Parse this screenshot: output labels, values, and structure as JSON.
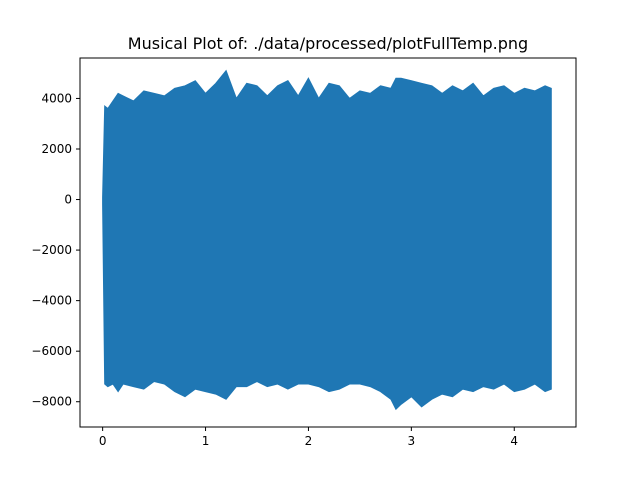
{
  "chart_data": {
    "type": "area",
    "title": "Musical Plot of: ./data/processed/plotFullTemp.png",
    "xlabel": "",
    "ylabel": "",
    "xlim": [
      -0.22,
      4.6
    ],
    "ylim": [
      -9000,
      5600
    ],
    "grid": false,
    "legend": "none",
    "xticks": [
      0,
      1,
      2,
      3,
      4
    ],
    "yticks": [
      -8000,
      -6000,
      -4000,
      -2000,
      0,
      2000,
      4000
    ],
    "xtick_labels": [
      "0",
      "1",
      "2",
      "3",
      "4"
    ],
    "ytick_labels": [
      "−8000",
      "−6000",
      "−4000",
      "−2000",
      "0",
      "2000",
      "4000"
    ],
    "series": [
      {
        "color": "#1f77b4",
        "x": [
          0,
          0.02,
          0.05,
          0.1,
          0.15,
          0.2,
          0.3,
          0.4,
          0.5,
          0.6,
          0.7,
          0.8,
          0.9,
          1.0,
          1.1,
          1.2,
          1.3,
          1.4,
          1.5,
          1.6,
          1.7,
          1.8,
          1.9,
          2.0,
          2.1,
          2.2,
          2.3,
          2.4,
          2.5,
          2.6,
          2.7,
          2.8,
          2.85,
          2.9,
          3.0,
          3.1,
          3.2,
          3.3,
          3.4,
          3.5,
          3.6,
          3.7,
          3.8,
          3.9,
          4.0,
          4.1,
          4.2,
          4.3,
          4.36
        ],
        "upper": [
          100,
          3700,
          3600,
          3900,
          4200,
          4100,
          3900,
          4300,
          4200,
          4100,
          4400,
          4500,
          4700,
          4200,
          4600,
          5100,
          4000,
          4600,
          4500,
          4100,
          4500,
          4700,
          4100,
          4800,
          4000,
          4600,
          4500,
          4000,
          4300,
          4200,
          4500,
          4400,
          4800,
          4800,
          4700,
          4600,
          4500,
          4200,
          4500,
          4300,
          4600,
          4100,
          4400,
          4500,
          4200,
          4400,
          4300,
          4500,
          4400
        ],
        "lower": [
          -200,
          -7300,
          -7400,
          -7300,
          -7600,
          -7300,
          -7400,
          -7500,
          -7200,
          -7300,
          -7600,
          -7800,
          -7500,
          -7600,
          -7700,
          -7900,
          -7400,
          -7400,
          -7200,
          -7400,
          -7300,
          -7500,
          -7300,
          -7300,
          -7400,
          -7600,
          -7500,
          -7300,
          -7300,
          -7400,
          -7600,
          -7900,
          -8300,
          -8100,
          -7800,
          -8200,
          -7900,
          -7700,
          -7800,
          -7500,
          -7600,
          -7400,
          -7500,
          -7300,
          -7600,
          -7500,
          -7300,
          -7600,
          -7500
        ]
      }
    ]
  }
}
